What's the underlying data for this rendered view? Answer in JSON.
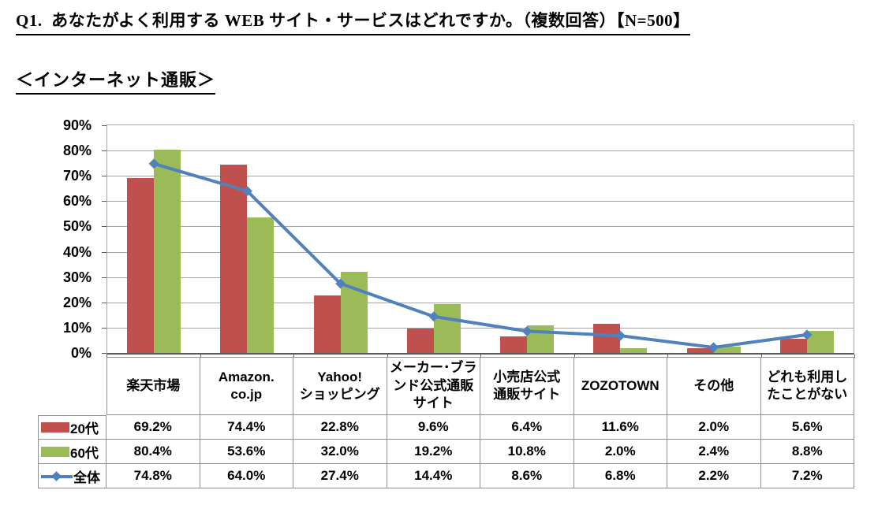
{
  "page": {
    "title": "Q1.  あなたがよく利用する WEB サイト・サービスはどれですか。（複数回答）【N=500】",
    "subtitle": "＜インターネット通販＞"
  },
  "chart_data": {
    "type": "bar",
    "subtype": "grouped-bars-with-line-overlay",
    "title": "",
    "xlabel": "",
    "ylabel": "",
    "ylim": [
      0,
      90
    ],
    "y_tick_step": 10,
    "y_tick_suffix": "%",
    "grid": true,
    "legend_position": "table-left-column",
    "categories": [
      "楽天市場",
      "Amazon.\nco.jp",
      "Yahoo!\nショッピング",
      "メーカー･ブラ\nンド公式通販\nサイト",
      "小売店公式\n通販サイト",
      "ZOZOTOWN",
      "その他",
      "どれも利用し\nたことがない"
    ],
    "series": [
      {
        "name": "20代",
        "type": "bar",
        "color": "#C0504D",
        "values": [
          69.2,
          74.4,
          22.8,
          9.6,
          6.4,
          11.6,
          2.0,
          5.6
        ]
      },
      {
        "name": "60代",
        "type": "bar",
        "color": "#9BBB59",
        "values": [
          80.4,
          53.6,
          32.0,
          19.2,
          10.8,
          2.0,
          2.4,
          8.8
        ]
      },
      {
        "name": "全体",
        "type": "line",
        "color": "#4F81BD",
        "values": [
          74.8,
          64.0,
          27.4,
          14.4,
          8.6,
          6.8,
          2.2,
          7.2
        ]
      }
    ],
    "value_display_format": "one-decimal-percent",
    "style_colors": {
      "gridline": "#A6A6A6",
      "axis_line": "#595959",
      "table_border": "#8E8E8E",
      "text": "#000000",
      "background": "#FFFFFF"
    }
  }
}
